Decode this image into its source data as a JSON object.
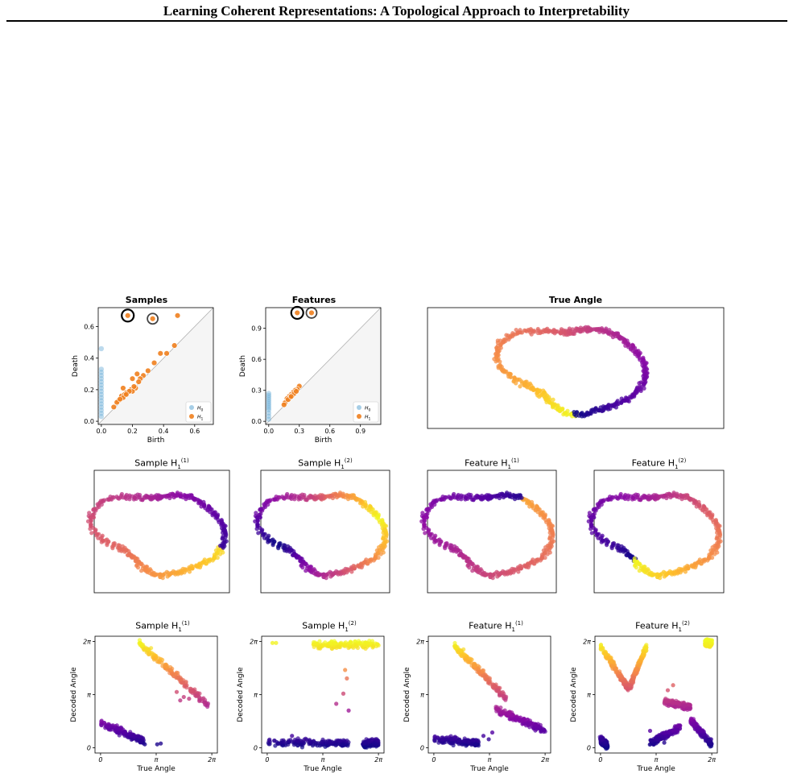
{
  "header": {
    "title": "Learning Coherent Representations: A Topological Approach to Interpretability"
  },
  "colors": {
    "h0": "#6baed6",
    "h1": "#f07f1e",
    "diagonal": "#b0b0b0",
    "plasma": [
      "#0d0887",
      "#5302a3",
      "#8b0aa5",
      "#b83289",
      "#db5c68",
      "#f48849",
      "#febd2a",
      "#f0f921"
    ]
  },
  "row1": {
    "samples": {
      "title": "Samples",
      "xlabel": "Birth",
      "ylabel": "Death",
      "xticks": [
        "0.0",
        "0.2",
        "0.4",
        "0.6"
      ],
      "yticks": [
        "0.0",
        "0.2",
        "0.4",
        "0.6"
      ],
      "legend": [
        {
          "label": "H",
          "sub": "0"
        },
        {
          "label": "H",
          "sub": "1"
        }
      ]
    },
    "features": {
      "title": "Features",
      "xlabel": "Birth",
      "ylabel": "Death",
      "xticks": [
        "0.0",
        "0.3",
        "0.6",
        "0.9"
      ],
      "yticks": [
        "0.0",
        "0.3",
        "0.6",
        "0.9"
      ],
      "legend": [
        {
          "label": "H",
          "sub": "0"
        },
        {
          "label": "H",
          "sub": "1"
        }
      ]
    },
    "true_angle": {
      "title": "True Angle"
    }
  },
  "row2": [
    {
      "title": "Sample H",
      "sub": "1",
      "sup": "(1)"
    },
    {
      "title": "Sample H",
      "sub": "1",
      "sup": "(2)"
    },
    {
      "title": "Feature H",
      "sub": "1",
      "sup": "(1)"
    },
    {
      "title": "Feature H",
      "sub": "1",
      "sup": "(2)"
    }
  ],
  "row3": [
    {
      "title": "Sample H",
      "sub": "1",
      "sup": "(1)",
      "xlabel": "True Angle",
      "ylabel": "Decoded Angle",
      "xticks": [
        "0",
        "π",
        "2π"
      ],
      "yticks": [
        "0",
        "π",
        "2π"
      ]
    },
    {
      "title": "Sample H",
      "sub": "1",
      "sup": "(2)",
      "xlabel": "True Angle",
      "ylabel": "Decoded Angle",
      "xticks": [
        "0",
        "π",
        "2π"
      ],
      "yticks": [
        "0",
        "π",
        "2π"
      ]
    },
    {
      "title": "Feature H",
      "sub": "1",
      "sup": "(1)",
      "xlabel": "True Angle",
      "ylabel": "Decoded Angle",
      "xticks": [
        "0",
        "π",
        "2π"
      ],
      "yticks": [
        "0",
        "π",
        "2π"
      ]
    },
    {
      "title": "Feature H",
      "sub": "1",
      "sup": "(2)",
      "xlabel": "True Angle",
      "ylabel": "Decoded Angle",
      "xticks": [
        "0",
        "π",
        "2π"
      ],
      "yticks": [
        "0",
        "π",
        "2π"
      ]
    }
  ],
  "chart_data": [
    {
      "type": "scatter",
      "title": "Samples",
      "xlabel": "Birth",
      "ylabel": "Death",
      "xlim": [
        -0.02,
        0.72
      ],
      "ylim": [
        -0.02,
        0.72
      ],
      "legend_position": "bottom-right",
      "series": [
        {
          "name": "H0",
          "points": [
            [
              0,
              0.46
            ],
            [
              0,
              0.33
            ],
            [
              0,
              0.31
            ],
            [
              0,
              0.29
            ],
            [
              0,
              0.27
            ],
            [
              0,
              0.25
            ],
            [
              0,
              0.23
            ],
            [
              0,
              0.21
            ],
            [
              0,
              0.19
            ],
            [
              0,
              0.17
            ],
            [
              0,
              0.15
            ],
            [
              0,
              0.13
            ],
            [
              0,
              0.11
            ],
            [
              0,
              0.09
            ],
            [
              0,
              0.07
            ],
            [
              0,
              0.05
            ],
            [
              0,
              0.03
            ]
          ]
        },
        {
          "name": "H1",
          "points": [
            [
              0.17,
              0.67
            ],
            [
              0.33,
              0.65
            ],
            [
              0.49,
              0.67
            ],
            [
              0.47,
              0.48
            ],
            [
              0.38,
              0.43
            ],
            [
              0.42,
              0.43
            ],
            [
              0.34,
              0.37
            ],
            [
              0.3,
              0.32
            ],
            [
              0.23,
              0.3
            ],
            [
              0.27,
              0.29
            ],
            [
              0.2,
              0.27
            ],
            [
              0.25,
              0.27
            ],
            [
              0.14,
              0.21
            ],
            [
              0.19,
              0.2
            ],
            [
              0.22,
              0.21
            ],
            [
              0.16,
              0.18
            ],
            [
              0.2,
              0.19
            ],
            [
              0.13,
              0.16
            ],
            [
              0.15,
              0.17
            ],
            [
              0.11,
              0.13
            ],
            [
              0.14,
              0.15
            ],
            [
              0.18,
              0.19
            ],
            [
              0.1,
              0.12
            ],
            [
              0.08,
              0.09
            ],
            [
              0.12,
              0.14
            ],
            [
              0.16,
              0.17
            ],
            [
              0.24,
              0.25
            ],
            [
              0.21,
              0.22
            ]
          ]
        }
      ],
      "highlighted": [
        [
          0.17,
          0.67
        ],
        [
          0.33,
          0.65
        ]
      ]
    },
    {
      "type": "scatter",
      "title": "Features",
      "xlabel": "Birth",
      "ylabel": "Death",
      "xlim": [
        -0.03,
        1.1
      ],
      "ylim": [
        -0.03,
        1.1
      ],
      "legend_position": "bottom-right",
      "series": [
        {
          "name": "H0",
          "points": [
            [
              0,
              0.27
            ],
            [
              0,
              0.25
            ],
            [
              0,
              0.23
            ],
            [
              0,
              0.21
            ],
            [
              0,
              0.19
            ],
            [
              0,
              0.17
            ],
            [
              0,
              0.15
            ],
            [
              0,
              0.13
            ],
            [
              0,
              0.11
            ],
            [
              0,
              0.08
            ],
            [
              0,
              0.05
            ],
            [
              0,
              0.02
            ]
          ]
        },
        {
          "name": "H1",
          "points": [
            [
              0.28,
              1.05
            ],
            [
              0.42,
              1.05
            ],
            [
              0.3,
              0.34
            ],
            [
              0.28,
              0.31
            ],
            [
              0.26,
              0.3
            ],
            [
              0.24,
              0.28
            ],
            [
              0.22,
              0.26
            ],
            [
              0.2,
              0.24
            ],
            [
              0.23,
              0.25
            ],
            [
              0.18,
              0.22
            ],
            [
              0.16,
              0.18
            ],
            [
              0.21,
              0.23
            ],
            [
              0.25,
              0.27
            ],
            [
              0.27,
              0.29
            ],
            [
              0.19,
              0.21
            ],
            [
              0.22,
              0.24
            ],
            [
              0.15,
              0.16
            ]
          ]
        }
      ],
      "highlighted": [
        [
          0.28,
          1.05
        ],
        [
          0.42,
          1.05
        ]
      ]
    },
    {
      "type": "scatter",
      "title": "Sample H_1^(1)",
      "xlabel": "True Angle",
      "ylabel": "Decoded Angle",
      "xlim": [
        0,
        6.2832
      ],
      "ylim": [
        0,
        6.2832
      ],
      "series": [
        {
          "segments": [
            [
              0,
              2.5,
              1.45,
              0.4
            ],
            [
              2.1,
              6.1,
              6.2832,
              2.5
            ]
          ],
          "outliers": [
            [
              2.5,
              0.2
            ],
            [
              3.2,
              0.2
            ],
            [
              3.4,
              0.25
            ],
            [
              4.5,
              2.8
            ],
            [
              4.7,
              3.0
            ],
            [
              4.3,
              3.3
            ],
            [
              5.0,
              2.9
            ]
          ]
        }
      ]
    },
    {
      "type": "scatter",
      "title": "Sample H_1^(2)",
      "xlabel": "True Angle",
      "ylabel": "Decoded Angle",
      "xlim": [
        0,
        6.2832
      ],
      "ylim": [
        0,
        6.2832
      ],
      "series": [
        {
          "segments": [
            [
              0,
              4.7,
              0.3,
              0.3
            ],
            [
              5.4,
              6.2832,
              0.2,
              0.3
            ],
            [
              2.6,
              6.2832,
              6.1,
              6.1
            ]
          ],
          "outliers": [
            [
              0.3,
              6.2
            ],
            [
              0.5,
              6.2
            ],
            [
              1.4,
              0.7
            ],
            [
              1.7,
              0.4
            ],
            [
              4.4,
              4.6
            ],
            [
              4.5,
              4.1
            ],
            [
              4.3,
              3.2
            ],
            [
              3.9,
              2.6
            ],
            [
              4.6,
              2.2
            ],
            [
              2.4,
              0.4
            ]
          ]
        }
      ]
    },
    {
      "type": "scatter",
      "title": "Feature H_1^(1)",
      "xlabel": "True Angle",
      "ylabel": "Decoded Angle",
      "xlim": [
        0,
        6.2832
      ],
      "ylim": [
        0,
        6.2832
      ],
      "series": [
        {
          "segments": [
            [
              0,
              2.6,
              0.5,
              0.3
            ],
            [
              1.1,
              4.1,
              6.1,
              2.9
            ],
            [
              3.5,
              6.2832,
              2.3,
              1.0
            ]
          ],
          "outliers": [
            [
              3.1,
              0.5
            ],
            [
              3.3,
              0.9
            ],
            [
              2.8,
              0.7
            ]
          ]
        }
      ]
    },
    {
      "type": "scatter",
      "title": "Feature H_1^(2)",
      "xlabel": "True Angle",
      "ylabel": "Decoded Angle",
      "xlim": [
        0,
        6.2832
      ],
      "ylim": [
        0,
        6.2832
      ],
      "series": [
        {
          "segments": [
            [
              0,
              1.6,
              6.0,
              3.5
            ],
            [
              1.6,
              2.6,
              3.5,
              6.0
            ],
            [
              0,
              0.4,
              0.5,
              0.1
            ],
            [
              2.8,
              4.5,
              0.3,
              1.2
            ],
            [
              3.6,
              5.1,
              2.7,
              2.4
            ],
            [
              5.1,
              6.2832,
              1.6,
              0.2
            ],
            [
              5.9,
              6.2832,
              6.2,
              6.2
            ]
          ],
          "outliers": [
            [
              3.6,
              0.3
            ],
            [
              3.2,
              0.5
            ],
            [
              2.8,
              1.0
            ],
            [
              3.8,
              3.4
            ],
            [
              4.1,
              3.7
            ]
          ]
        }
      ]
    }
  ]
}
